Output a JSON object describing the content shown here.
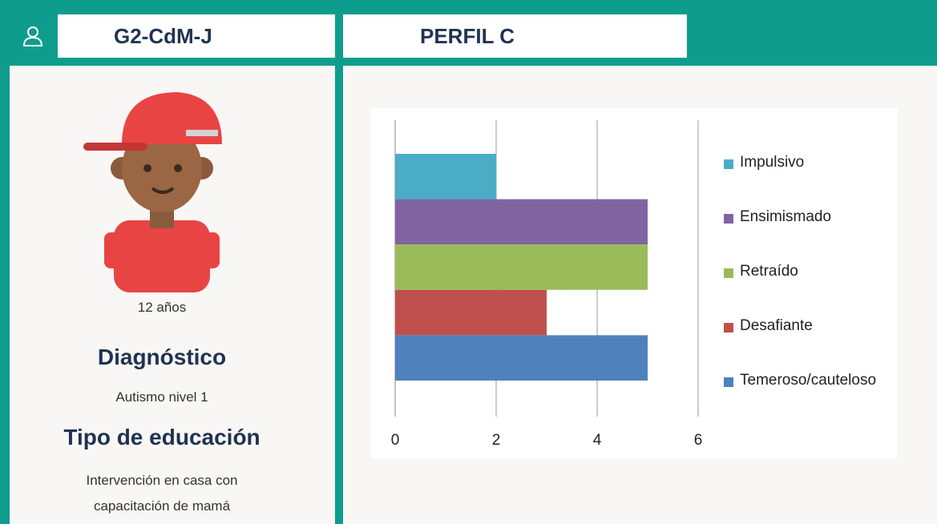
{
  "header": {
    "user_code": "G2-CdM-J",
    "profile": "PERFIL C"
  },
  "profile": {
    "age": "12 años",
    "diagnosis_heading": "Diagnóstico",
    "diagnosis": "Autismo nivel 1",
    "education_heading": "Tipo de educación",
    "education": "Intervención en casa con capacitación de mamá"
  },
  "chart_data": {
    "type": "hbar",
    "categories": [
      null
    ],
    "series": [
      {
        "name": "Impulsivo",
        "color": "#4bacc6",
        "values": [
          2
        ]
      },
      {
        "name": "Ensimismado",
        "color": "#8064a2",
        "values": [
          5
        ]
      },
      {
        "name": "Retraído",
        "color": "#9bbb59",
        "values": [
          5
        ]
      },
      {
        "name": "Desafiante",
        "color": "#c0504d",
        "values": [
          3
        ]
      },
      {
        "name": "Temeroso/cauteloso",
        "color": "#4f81bd",
        "values": [
          5
        ]
      }
    ],
    "xlim": [
      0,
      6
    ],
    "xticks": [
      0,
      2,
      4,
      6
    ],
    "grid": true,
    "legend": "right"
  }
}
